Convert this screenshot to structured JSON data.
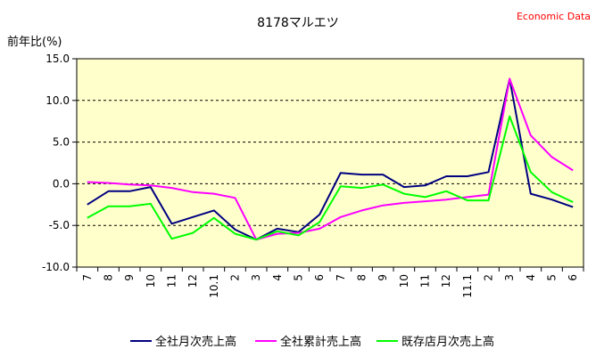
{
  "chart_data": {
    "type": "line",
    "title": "8178マルエツ",
    "source_label": "Economic Data",
    "ylabel": "前年比(%)",
    "xlabel": "",
    "ylim": [
      -10.0,
      15.0
    ],
    "yticks": [
      "15.0",
      "10.0",
      "5.0",
      "0.0",
      "-5.0",
      "-10.0"
    ],
    "ytick_values": [
      15,
      10,
      5,
      0,
      -5,
      -10
    ],
    "grid": "horizontal dashed",
    "legend_position": "bottom",
    "plot_background": "#ffffcc",
    "categories": [
      "7",
      "8",
      "9",
      "10",
      "11",
      "12",
      "10.1",
      "2",
      "3",
      "4",
      "5",
      "6",
      "7",
      "8",
      "9",
      "10",
      "11",
      "12",
      "11.1",
      "2",
      "3",
      "4",
      "5",
      "6"
    ],
    "series": [
      {
        "name": "全社月次売上高",
        "color": "#000080",
        "values": [
          -2.5,
          -0.9,
          -0.9,
          -0.4,
          -4.8,
          -4.0,
          -3.2,
          -5.5,
          -6.7,
          -5.4,
          -5.8,
          -3.7,
          1.3,
          1.1,
          1.1,
          -0.4,
          -0.2,
          0.9,
          0.9,
          1.4,
          12.6,
          -1.2,
          -1.9,
          -2.8
        ]
      },
      {
        "name": "全社累計売上高",
        "color": "#ff00ff",
        "values": [
          0.2,
          0.1,
          -0.1,
          -0.2,
          -0.5,
          -1.0,
          -1.2,
          -1.7,
          -6.7,
          -6.0,
          -5.9,
          -5.4,
          -4.0,
          -3.2,
          -2.6,
          -2.3,
          -2.1,
          -1.9,
          -1.6,
          -1.3,
          12.6,
          5.8,
          3.2,
          1.6
        ]
      },
      {
        "name": "既存店月次売上高",
        "color": "#00ff00",
        "values": [
          -4.1,
          -2.7,
          -2.7,
          -2.4,
          -6.6,
          -5.9,
          -4.1,
          -6.0,
          -6.7,
          -5.7,
          -6.2,
          -4.6,
          -0.3,
          -0.5,
          -0.1,
          -1.2,
          -1.6,
          -0.9,
          -2.0,
          -2.0,
          8.1,
          1.4,
          -1.0,
          -2.2
        ]
      }
    ]
  }
}
